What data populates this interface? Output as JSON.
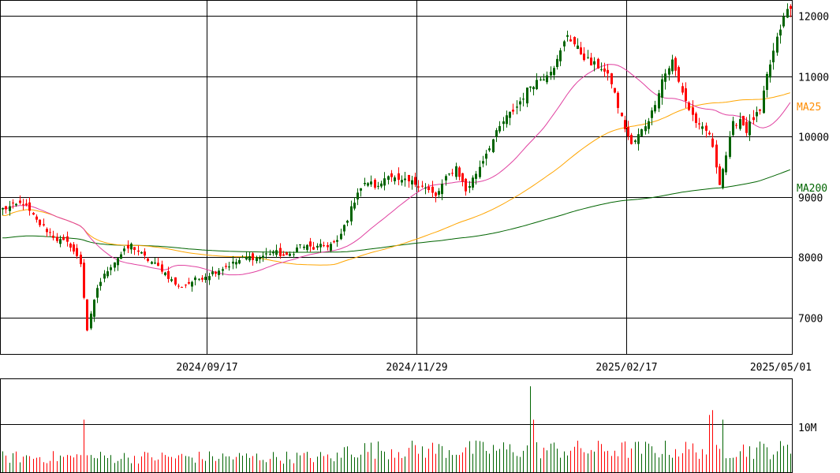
{
  "chart_data": {
    "type": "candlestick",
    "x_ticks": [
      "2024/09/17",
      "2024/11/29",
      "2025/02/17",
      "2025/05/01"
    ],
    "y_ticks": [
      7000,
      8000,
      9000,
      10000,
      11000,
      12000
    ],
    "ylim": [
      6400,
      12250
    ],
    "grid": true,
    "colors": {
      "up": "#006400",
      "down": "#ff0000",
      "ma25": "#e040a0",
      "ma75": "#ffa500",
      "ma200": "#006400",
      "grid": "#000000",
      "ma25_label": "#ff8c00",
      "ma200_label": "#006400"
    },
    "ma_labels": {
      "ma25": "MA25",
      "ma200": "MA200"
    },
    "price_anchors": [
      [
        0,
        8800
      ],
      [
        6,
        8900
      ],
      [
        10,
        8600
      ],
      [
        16,
        8300
      ],
      [
        20,
        8200
      ],
      [
        23,
        7900
      ],
      [
        25,
        6800
      ],
      [
        28,
        7500
      ],
      [
        31,
        7800
      ],
      [
        34,
        8000
      ],
      [
        38,
        8200
      ],
      [
        42,
        8000
      ],
      [
        47,
        7800
      ],
      [
        52,
        7500
      ],
      [
        56,
        7600
      ],
      [
        60,
        7700
      ],
      [
        64,
        7800
      ],
      [
        68,
        7900
      ],
      [
        72,
        8000
      ],
      [
        76,
        8000
      ],
      [
        80,
        8100
      ],
      [
        84,
        8000
      ],
      [
        88,
        8200
      ],
      [
        92,
        8150
      ],
      [
        96,
        8200
      ],
      [
        99,
        8250
      ],
      [
        102,
        8650
      ],
      [
        105,
        9100
      ],
      [
        108,
        9250
      ],
      [
        111,
        9150
      ],
      [
        114,
        9400
      ],
      [
        117,
        9250
      ],
      [
        120,
        9250
      ],
      [
        124,
        9200
      ],
      [
        128,
        9000
      ],
      [
        131,
        9300
      ],
      [
        134,
        9500
      ],
      [
        137,
        9100
      ],
      [
        140,
        9400
      ],
      [
        144,
        9850
      ],
      [
        148,
        10250
      ],
      [
        152,
        10500
      ],
      [
        156,
        10850
      ],
      [
        160,
        11000
      ],
      [
        164,
        11250
      ],
      [
        167,
        11700
      ],
      [
        170,
        11450
      ],
      [
        174,
        11200
      ],
      [
        177,
        11150
      ],
      [
        180,
        10900
      ],
      [
        183,
        10300
      ],
      [
        186,
        9850
      ],
      [
        189,
        10100
      ],
      [
        192,
        10400
      ],
      [
        195,
        10950
      ],
      [
        198,
        11250
      ],
      [
        200,
        10900
      ],
      [
        203,
        10450
      ],
      [
        206,
        10150
      ],
      [
        209,
        10050
      ],
      [
        212,
        9250
      ],
      [
        214,
        9700
      ],
      [
        216,
        10200
      ],
      [
        218,
        10300
      ],
      [
        220,
        10100
      ],
      [
        222,
        10300
      ],
      [
        224,
        10400
      ],
      [
        226,
        11000
      ],
      [
        228,
        11400
      ],
      [
        230,
        11800
      ],
      [
        232,
        12100
      ]
    ],
    "volume": {
      "axis_label": "10M",
      "axis_value": 10000000,
      "max": 18000000,
      "baseline": 3000000,
      "spikes": [
        [
          24,
          11000000
        ],
        [
          156,
          18000000
        ],
        [
          157,
          11000000
        ],
        [
          209,
          12000000
        ],
        [
          210,
          13000000
        ],
        [
          213,
          11000000
        ]
      ]
    }
  }
}
